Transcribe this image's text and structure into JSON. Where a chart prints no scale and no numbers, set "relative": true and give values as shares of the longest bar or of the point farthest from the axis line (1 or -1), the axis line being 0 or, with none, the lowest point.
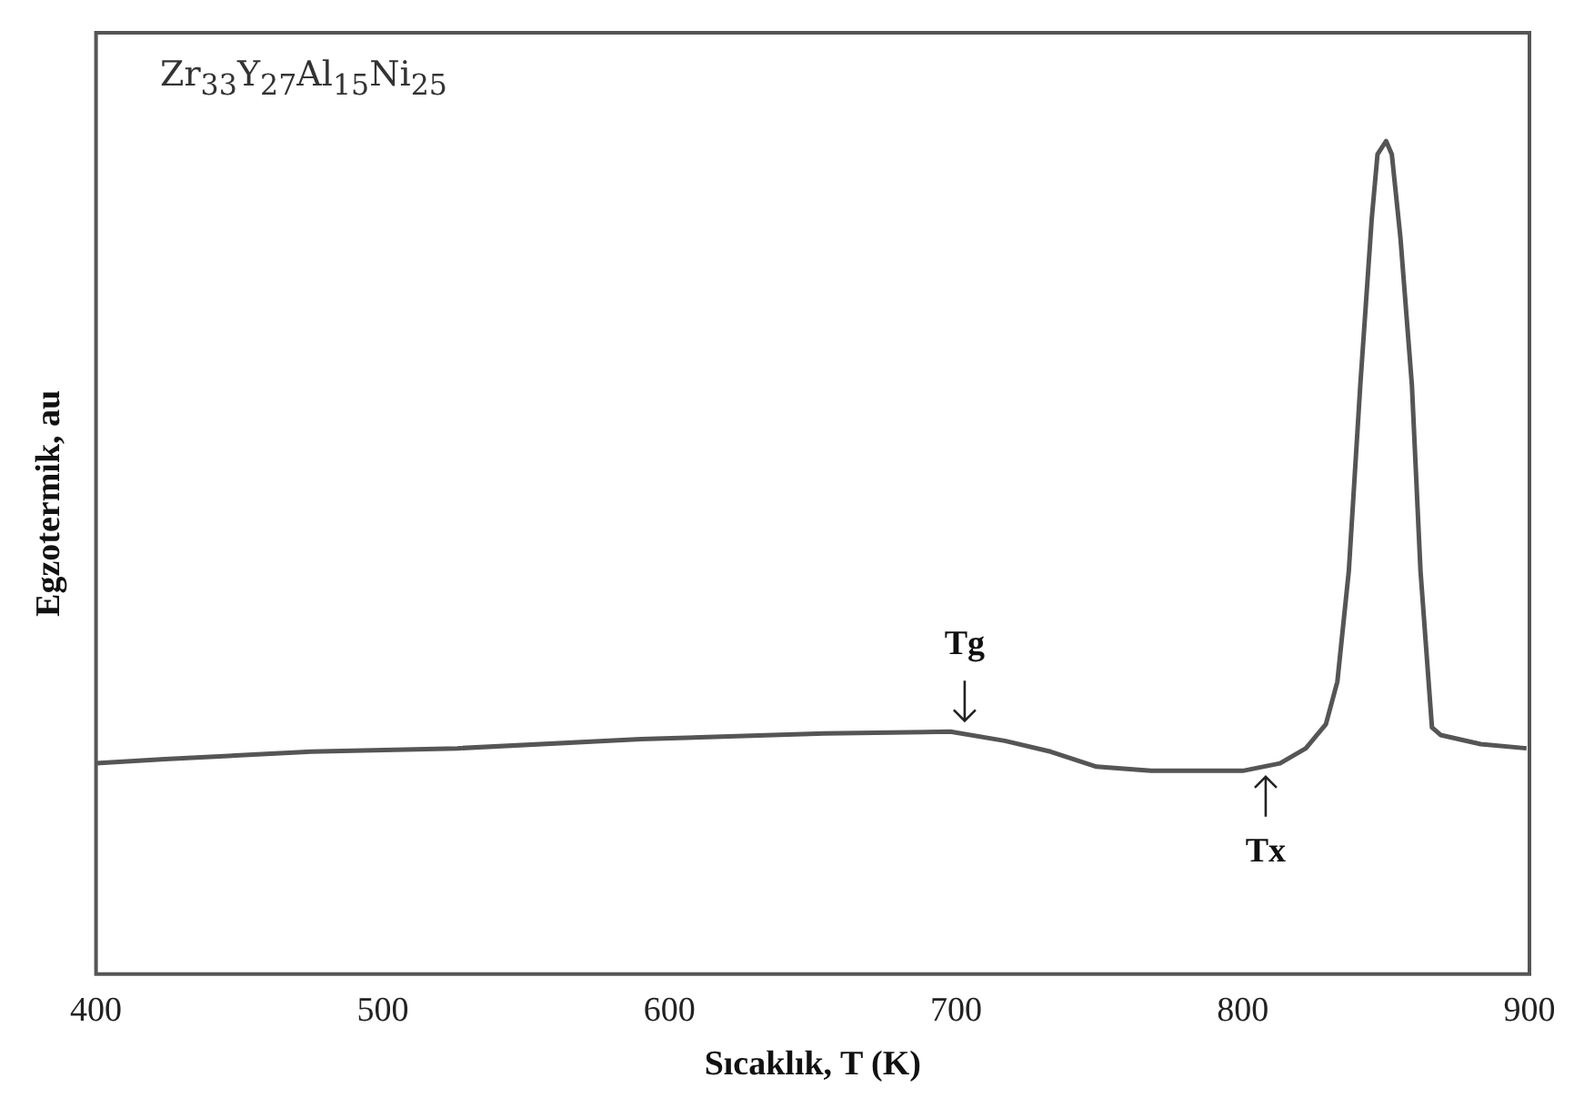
{
  "chart_data": {
    "type": "line",
    "title": "Zr$_{33}$Y$_{27}$Al$_{15}$Ni$_{25}$",
    "xlabel": "Sıcaklık, T (K)",
    "ylabel": "Egzotermik, au",
    "relative": true,
    "xlim": [
      400,
      900
    ],
    "xticks": [
      400,
      500,
      600,
      700,
      800,
      900
    ],
    "grid": false,
    "legend": false,
    "marker": "none",
    "line_style": "solid",
    "series": [
      {
        "color": "#555555",
        "x": [
          400,
          424,
          475,
          526,
          590,
          654,
          698,
          717,
          733,
          749,
          768,
          800,
          813,
          822,
          829,
          833,
          837,
          841,
          845,
          847,
          850,
          852,
          855,
          859,
          862,
          866,
          869,
          883,
          899
        ],
        "values": [
          0.253,
          0.258,
          0.267,
          0.271,
          0.282,
          0.289,
          0.291,
          0.28,
          0.267,
          0.249,
          0.244,
          0.244,
          0.253,
          0.271,
          0.3,
          0.351,
          0.484,
          0.707,
          0.907,
          0.984,
          1.0,
          0.984,
          0.884,
          0.707,
          0.484,
          0.296,
          0.287,
          0.276,
          0.271
        ]
      }
    ],
    "annotations": [
      {
        "text": "Tg",
        "x": 703,
        "y": 0.291
      },
      {
        "text": "Tx",
        "x": 808,
        "y": 0.25
      }
    ]
  }
}
